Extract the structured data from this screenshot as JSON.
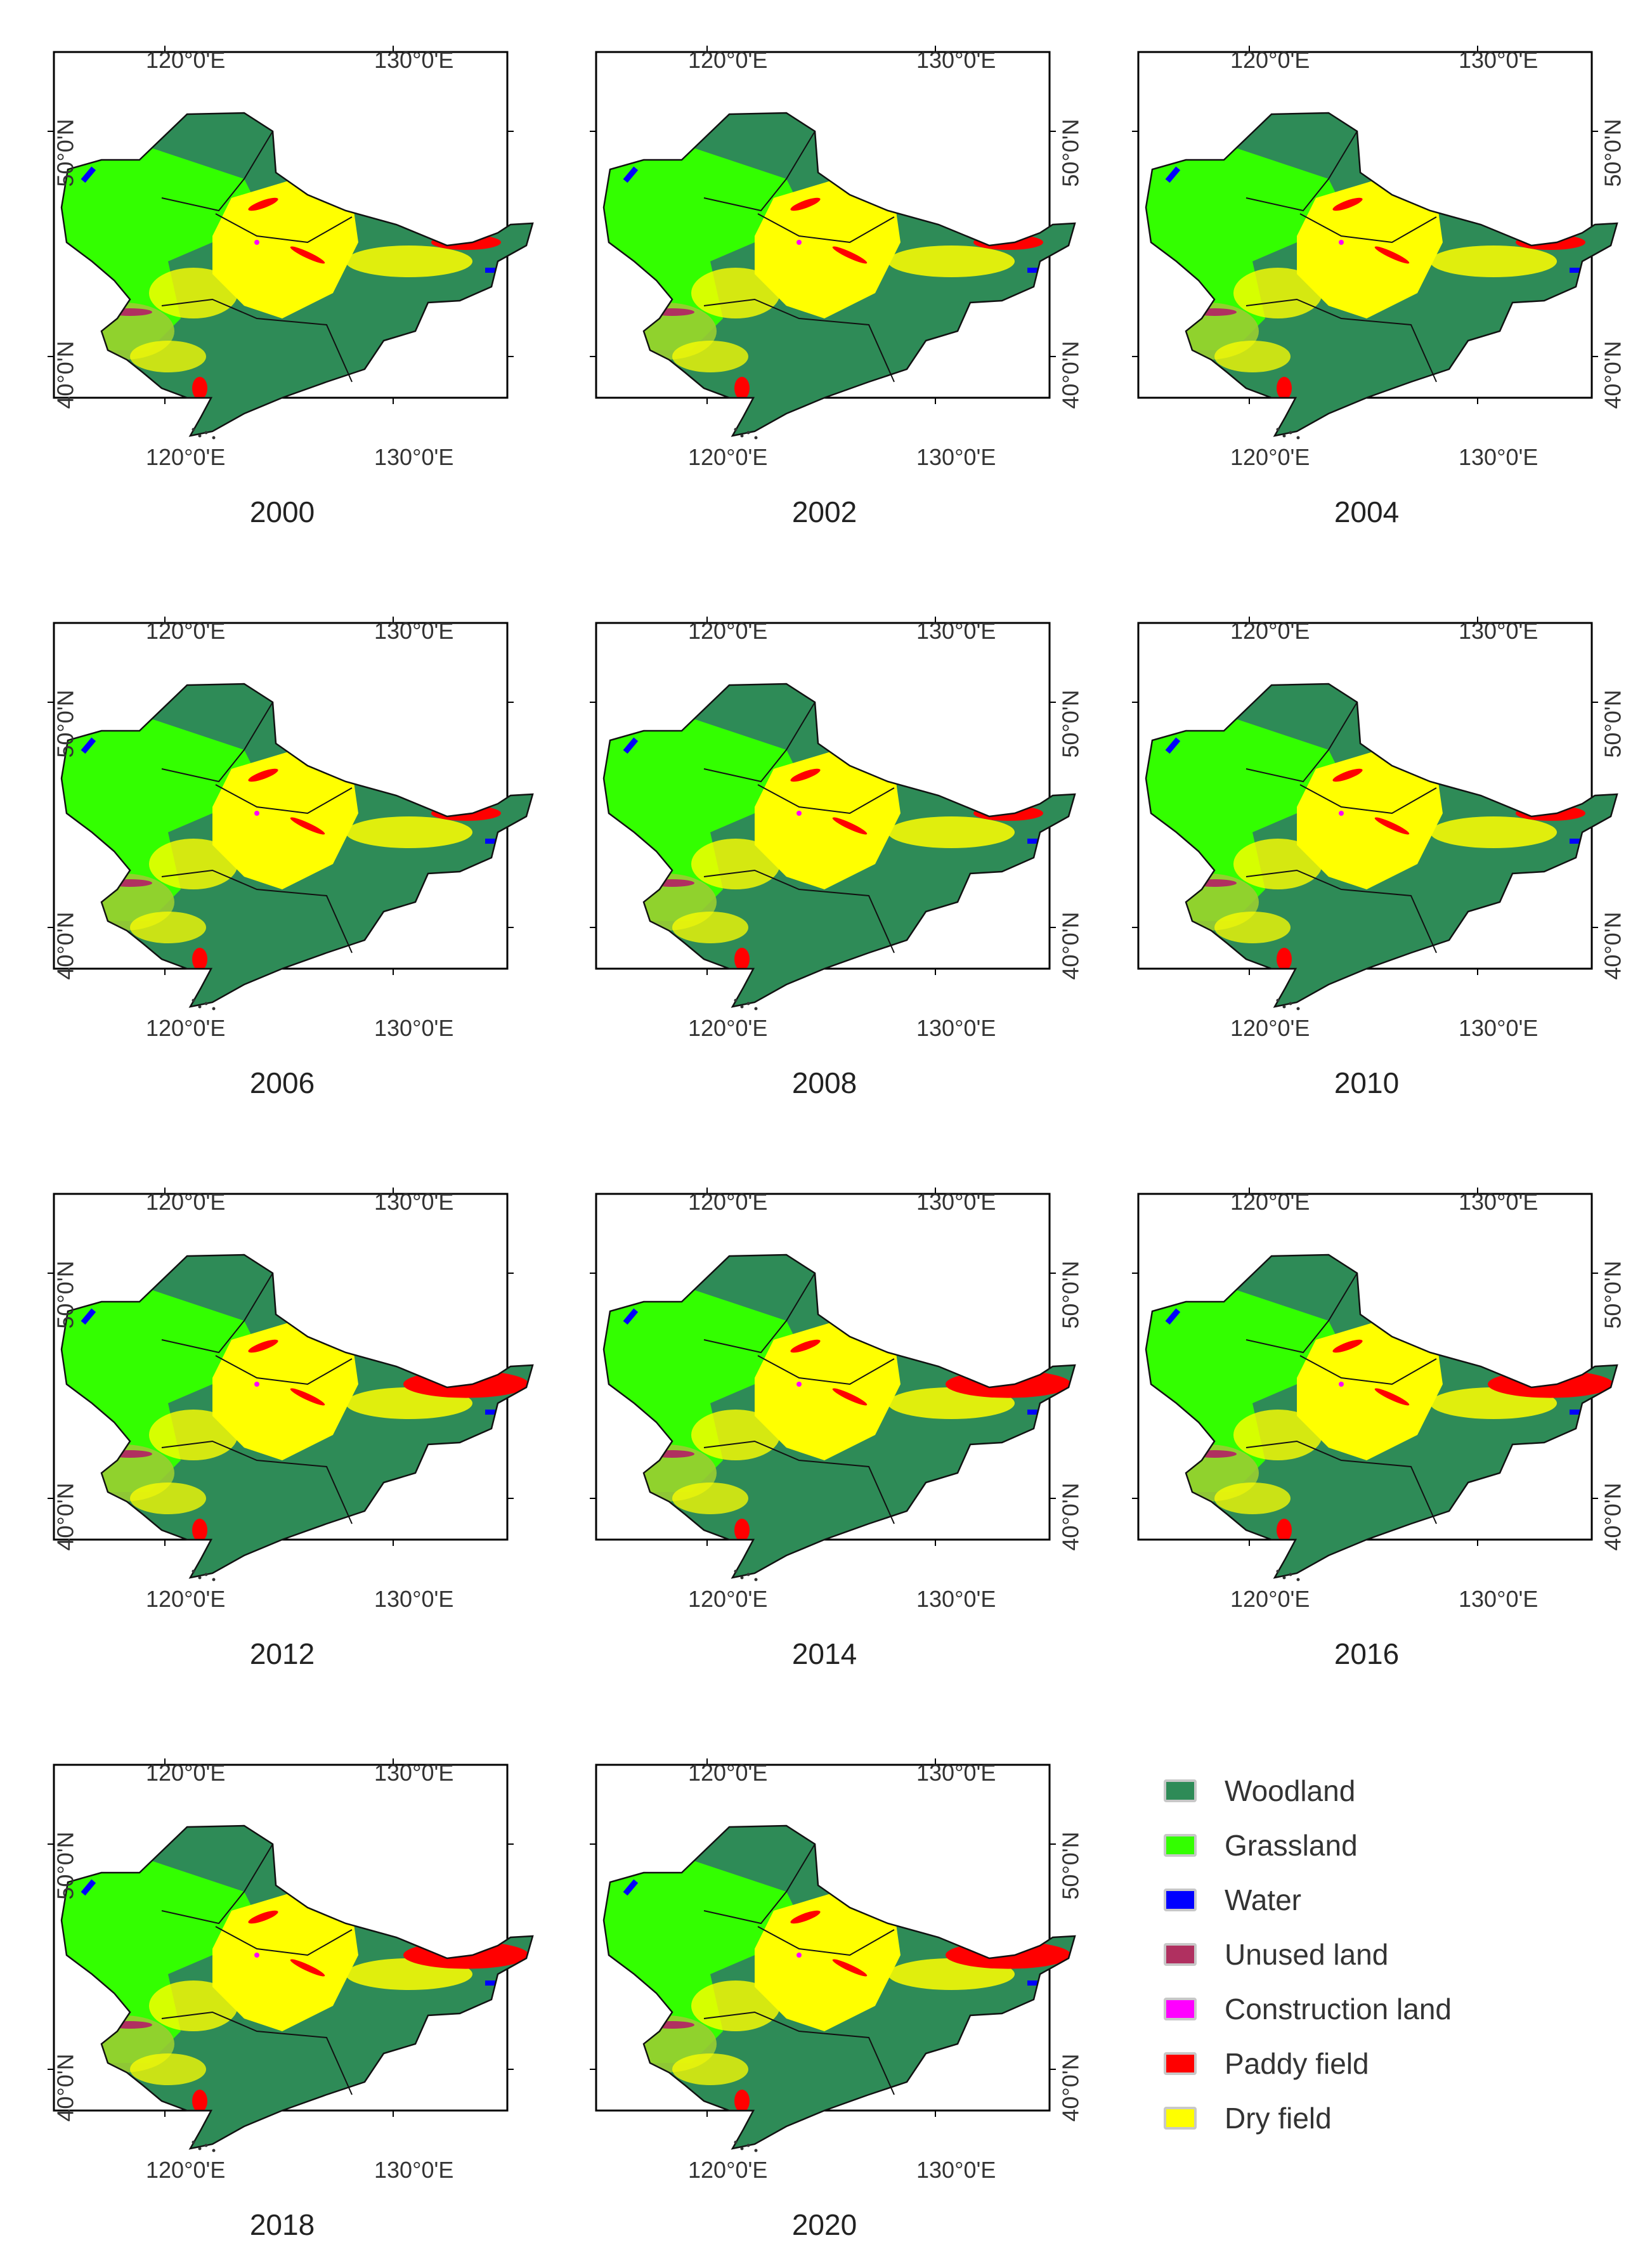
{
  "axis_labels": {
    "lon_left": "120°0'E",
    "lon_right": "130°0'E",
    "lat_upper": "50°0'N",
    "lat_lower": "40°0'N"
  },
  "panels": [
    {
      "year": "2000"
    },
    {
      "year": "2002"
    },
    {
      "year": "2004"
    },
    {
      "year": "2006"
    },
    {
      "year": "2008"
    },
    {
      "year": "2010"
    },
    {
      "year": "2012"
    },
    {
      "year": "2014"
    },
    {
      "year": "2016"
    },
    {
      "year": "2018"
    },
    {
      "year": "2020"
    }
  ],
  "legend": [
    {
      "label": "Woodland",
      "color": "#2e8b57"
    },
    {
      "label": "Grassland",
      "color": "#33ff00"
    },
    {
      "label": "Water",
      "color": "#0000ff"
    },
    {
      "label": "Unused land",
      "color": "#b03060"
    },
    {
      "label": "Construction land",
      "color": "#ff00ff"
    },
    {
      "label": "Paddy field",
      "color": "#ff0000"
    },
    {
      "label": "Dry field",
      "color": "#ffff00"
    }
  ]
}
